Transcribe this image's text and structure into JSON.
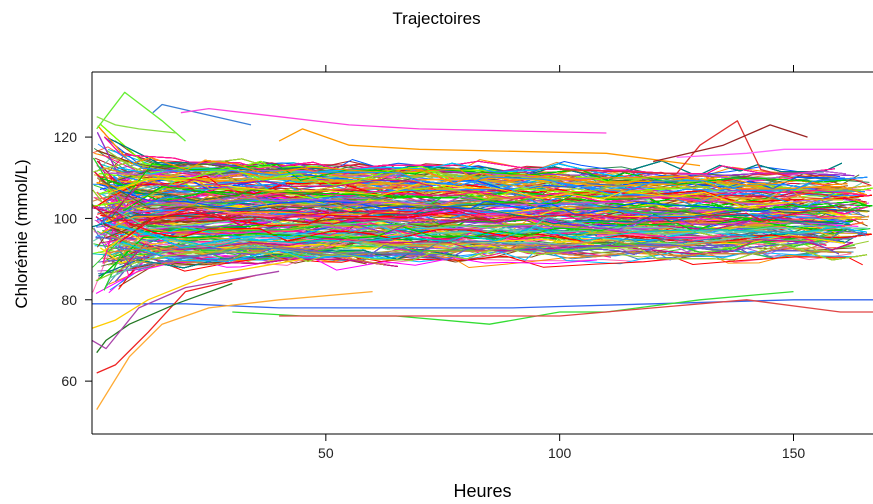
{
  "chart_data": {
    "type": "line",
    "title": "Trajectoires",
    "xlabel": "Heures",
    "ylabel": "Chlorémie (mmol/L)",
    "xlim": [
      0,
      167
    ],
    "ylim": [
      47,
      136
    ],
    "x_ticks": [
      50,
      100,
      150
    ],
    "y_ticks": [
      60,
      80,
      100,
      120
    ],
    "x_tick_labels": [
      "50",
      "100",
      "150"
    ],
    "y_tick_labels": [
      "60",
      "80",
      "100",
      "120"
    ],
    "top_axis_ticks": true,
    "grid": false,
    "legend": "none",
    "n_trajectories_approx": 900,
    "central_band": {
      "x": [
        0,
        40,
        80,
        120,
        167
      ],
      "y_low": [
        84,
        86,
        87,
        88,
        89
      ],
      "y_high": [
        118,
        117,
        116,
        114,
        113
      ]
    },
    "palette": [
      "#ff0000",
      "#00cc00",
      "#0055ff",
      "#ff8c00",
      "#ff00ff",
      "#8b4513",
      "#00c5cd",
      "#ffd700",
      "#7fff00",
      "#9932cc",
      "#ff1493",
      "#1e90ff",
      "#32cd32",
      "#dc143c",
      "#ffa500",
      "#6a5acd",
      "#2e8b57",
      "#ff6347",
      "#4682b4",
      "#daa520",
      "#ba55d3",
      "#008080",
      "#b22222",
      "#66cdaa",
      "#c71585",
      "#556b2f",
      "#cd853f",
      "#00bfff",
      "#9acd32",
      "#ff69b4"
    ],
    "highlighted_series": [
      {
        "x": [
          13,
          15,
          34
        ],
        "y": [
          126,
          128,
          123
        ],
        "color": "#3a7fd5"
      },
      {
        "x": [
          19,
          25,
          40,
          55,
          70,
          110
        ],
        "y": [
          126,
          127,
          125,
          123,
          122,
          121
        ],
        "color": "#ff44dd"
      },
      {
        "x": [
          1,
          7,
          15,
          20
        ],
        "y": [
          122,
          131,
          124,
          119
        ],
        "color": "#66ee33"
      },
      {
        "x": [
          1,
          5,
          10,
          18
        ],
        "y": [
          125,
          123,
          122,
          121
        ],
        "color": "#88dd44"
      },
      {
        "x": [
          40,
          45,
          55,
          70,
          110,
          130
        ],
        "y": [
          119,
          122,
          118,
          117,
          116,
          113
        ],
        "color": "#ff9900"
      },
      {
        "x": [
          100,
          125,
          130,
          138,
          143,
          150
        ],
        "y": [
          112,
          111,
          118,
          124,
          112,
          110
        ],
        "color": "#e03030"
      },
      {
        "x": [
          120,
          135,
          145,
          153
        ],
        "y": [
          114,
          118,
          123,
          120
        ],
        "color": "#9b2222"
      },
      {
        "x": [
          125,
          140,
          148,
          167
        ],
        "y": [
          115,
          116,
          117,
          117
        ],
        "color": "#ff66ff"
      },
      {
        "x": [
          0,
          20,
          40,
          60,
          90,
          120,
          150,
          167
        ],
        "y": [
          79,
          79,
          78,
          78,
          78,
          79,
          80,
          80
        ],
        "color": "#3366ee"
      },
      {
        "x": [
          30,
          45,
          65,
          85,
          100,
          110,
          130,
          150
        ],
        "y": [
          77,
          76,
          76,
          74,
          77,
          77,
          80,
          82
        ],
        "color": "#33dd33"
      },
      {
        "x": [
          40,
          70,
          100,
          120,
          140,
          160,
          167
        ],
        "y": [
          76,
          76,
          76,
          78,
          80,
          77,
          77
        ],
        "color": "#e04444"
      },
      {
        "x": [
          1,
          8,
          15,
          25,
          40,
          60
        ],
        "y": [
          53,
          66,
          74,
          78,
          80,
          82
        ],
        "color": "#ffaa33"
      },
      {
        "x": [
          1,
          5,
          12,
          20,
          35
        ],
        "y": [
          62,
          64,
          72,
          82,
          86
        ],
        "color": "#ee2222"
      },
      {
        "x": [
          1,
          3,
          8,
          18,
          30
        ],
        "y": [
          67,
          70,
          74,
          79,
          84
        ],
        "color": "#227722"
      },
      {
        "x": [
          0,
          3,
          10,
          20,
          40
        ],
        "y": [
          70,
          68,
          78,
          83,
          87
        ],
        "color": "#aa44aa"
      },
      {
        "x": [
          0,
          5,
          12,
          25,
          45
        ],
        "y": [
          73,
          75,
          80,
          86,
          90
        ],
        "color": "#ffcc00"
      }
    ]
  }
}
